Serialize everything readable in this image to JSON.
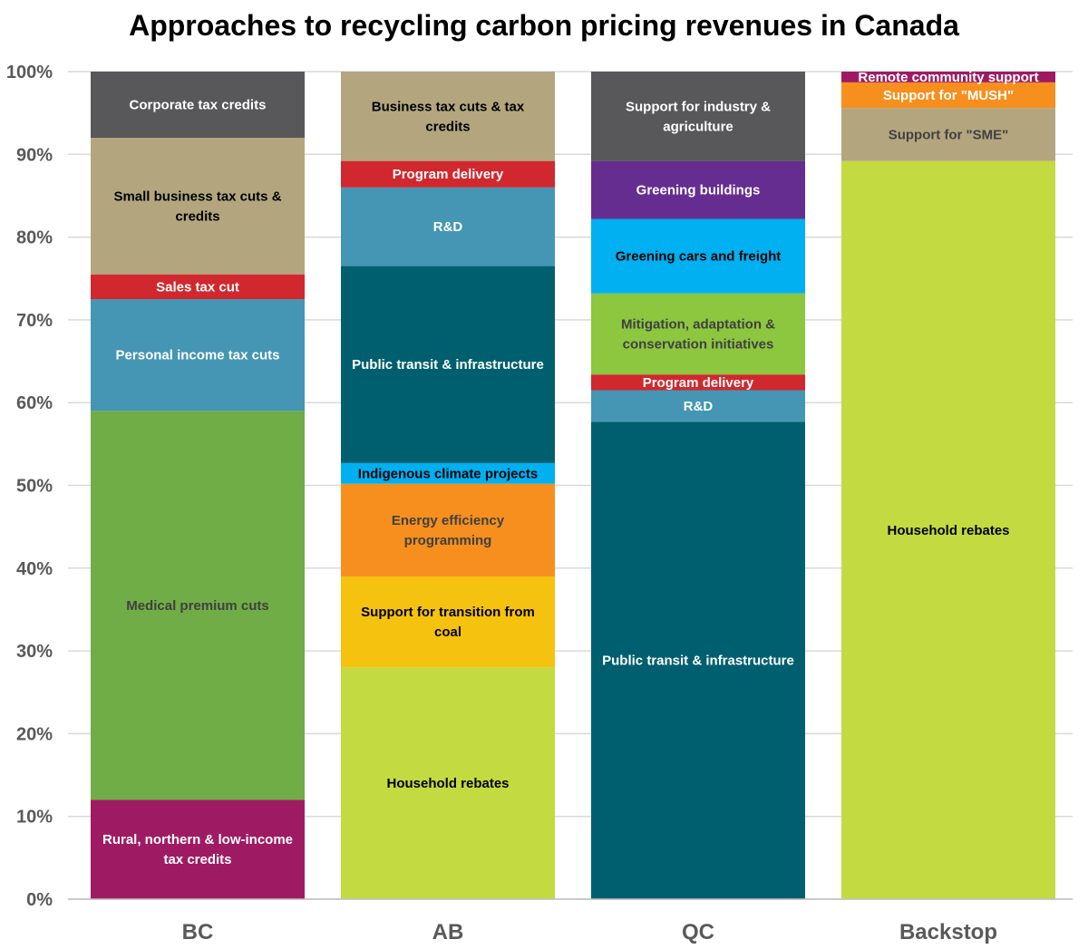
{
  "chart_data": {
    "type": "bar",
    "stacked": true,
    "title": "Approaches to recycling carbon pricing revenues in Canada",
    "xlabel": "",
    "ylabel": "",
    "ylim": [
      0,
      100
    ],
    "y_ticks": [
      "0%",
      "10%",
      "20%",
      "30%",
      "40%",
      "50%",
      "60%",
      "70%",
      "80%",
      "90%",
      "100%"
    ],
    "grid": "horizontal",
    "legend": "none (segments labelled inline)",
    "categories": [
      "BC",
      "AB",
      "QC",
      "Backstop"
    ],
    "stacks": [
      {
        "category": "BC",
        "segments": [
          {
            "label": "Rural, northern & low-income tax credits",
            "value": 12,
            "color": "#9e1b63",
            "text_color": "#ffffff"
          },
          {
            "label": "Medical premium cuts",
            "value": 47,
            "color": "#71ad47",
            "text_color": "#404040"
          },
          {
            "label": "Personal income tax cuts",
            "value": 13.5,
            "color": "#4496b4",
            "text_color": "#ffffff"
          },
          {
            "label": "Sales tax cut",
            "value": 3,
            "color": "#d0282e",
            "text_color": "#ffffff"
          },
          {
            "label": "Small business tax cuts & credits",
            "value": 16.5,
            "color": "#b3a67f",
            "text_color": "#000000"
          },
          {
            "label": "Corporate tax credits",
            "value": 8,
            "color": "#58585a",
            "text_color": "#ffffff"
          }
        ]
      },
      {
        "category": "AB",
        "segments": [
          {
            "label": "Household rebates",
            "value": 28,
            "color": "#c3da41",
            "text_color": "#000000"
          },
          {
            "label": "Support for transition from coal",
            "value": 11,
            "color": "#f4c20f",
            "text_color": "#000000"
          },
          {
            "label": "Energy efficiency programming",
            "value": 11.2,
            "color": "#f68f1e",
            "text_color": "#404040"
          },
          {
            "label": "Indigenous climate projects",
            "value": 2.5,
            "color": "#00b0f0",
            "text_color": "#000000"
          },
          {
            "label": "Public transit & infrastructure",
            "value": 23.8,
            "color": "#005f6e",
            "text_color": "#ffffff"
          },
          {
            "label": "R&D",
            "value": 9.5,
            "color": "#4496b4",
            "text_color": "#ffffff"
          },
          {
            "label": "Program delivery",
            "value": 3.2,
            "color": "#d0282e",
            "text_color": "#ffffff"
          },
          {
            "label": "Business tax cuts & tax credits",
            "value": 10.8,
            "color": "#b3a67f",
            "text_color": "#000000"
          }
        ]
      },
      {
        "category": "QC",
        "segments": [
          {
            "label": "Public transit & infrastructure",
            "value": 57.7,
            "color": "#005f6e",
            "text_color": "#ffffff"
          },
          {
            "label": "R&D",
            "value": 3.8,
            "color": "#4496b4",
            "text_color": "#ffffff"
          },
          {
            "label": "Program delivery",
            "value": 1.9,
            "color": "#d0282e",
            "text_color": "#ffffff"
          },
          {
            "label": "Mitigation, adaptation & conservation initiatives",
            "value": 9.8,
            "color": "#8dc63f",
            "text_color": "#404040"
          },
          {
            "label": "Greening cars and freight",
            "value": 9,
            "color": "#00b0f0",
            "text_color": "#000000"
          },
          {
            "label": "Greening buildings",
            "value": 7,
            "color": "#662d91",
            "text_color": "#ffffff"
          },
          {
            "label": "Support for industry & agriculture",
            "value": 10.8,
            "color": "#58585a",
            "text_color": "#ffffff"
          }
        ]
      },
      {
        "category": "Backstop",
        "segments": [
          {
            "label": "Household rebates",
            "value": 89.2,
            "color": "#c3da41",
            "text_color": "#000000"
          },
          {
            "label": "Support for \"SME\"",
            "value": 6.4,
            "color": "#b3a67f",
            "text_color": "#404040"
          },
          {
            "label": "Support for \"MUSH\"",
            "value": 3.1,
            "color": "#f68f1e",
            "text_color": "#ffffff"
          },
          {
            "label": "Remote community support",
            "value": 1.3,
            "color": "#9e1b63",
            "text_color": "#ffffff"
          }
        ]
      }
    ]
  }
}
